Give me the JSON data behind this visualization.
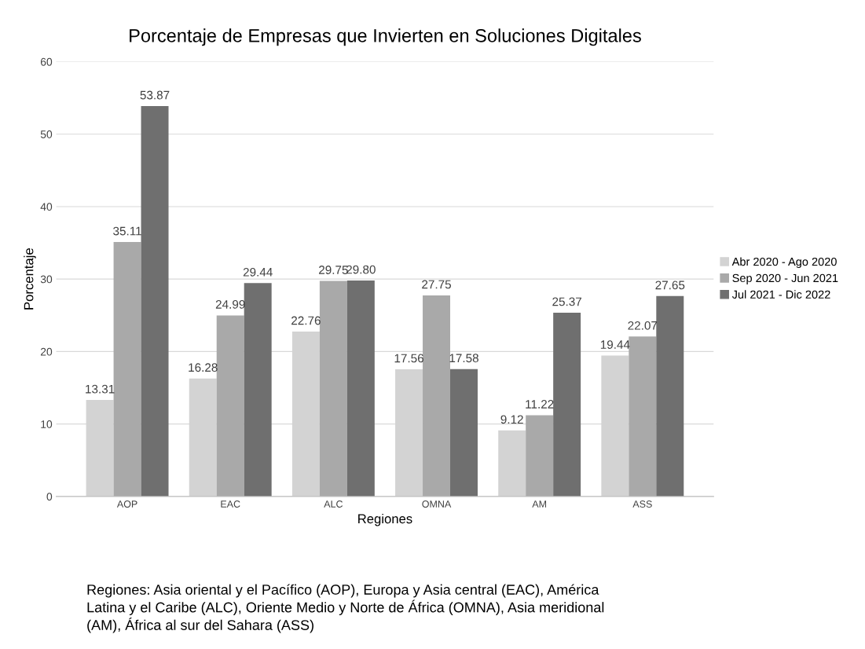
{
  "chart_data": {
    "type": "bar",
    "title": "Porcentaje de Empresas que Invierten en Soluciones Digitales",
    "xlabel": "Regiones",
    "ylabel": "Porcentaje",
    "categories": [
      "AOP",
      "EAC",
      "ALC",
      "OMNA",
      "AM",
      "ASS"
    ],
    "series": [
      {
        "name": "Abr 2020 - Ago 2020",
        "color": "#d3d3d3",
        "values": [
          13.31,
          16.28,
          22.76,
          17.56,
          9.12,
          19.44
        ],
        "value_labels": [
          "13.31",
          "16.28",
          "22.76",
          "17.56",
          "9.12",
          "19.44"
        ]
      },
      {
        "name": "Sep 2020 - Jun 2021",
        "color": "#a9a9a9",
        "values": [
          35.11,
          24.99,
          29.75,
          27.75,
          11.22,
          22.07
        ],
        "value_labels": [
          "35.11",
          "24.99",
          "29.75",
          "27.75",
          "11.22",
          "22.07"
        ]
      },
      {
        "name": "Jul 2021 - Dic 2022",
        "color": "#6f6f6f",
        "values": [
          53.87,
          29.44,
          29.8,
          17.58,
          25.37,
          27.65
        ],
        "value_labels": [
          "53.87",
          "29.44",
          "29.80",
          "17.58",
          "25.37",
          "27.65"
        ]
      }
    ],
    "ylim": [
      0,
      60
    ],
    "yticks": [
      0,
      10,
      20,
      30,
      40,
      50,
      60
    ],
    "grid": "y",
    "legend": "right",
    "annotations": [
      "Regiones: Asia oriental y el Pacífico (AOP), Europa y Asia central (EAC), América Latina y el Caribe (ALC), Oriente Medio y Norte de África (OMNA), Asia meridional (AM), África al sur del Sahara (ASS)"
    ]
  }
}
